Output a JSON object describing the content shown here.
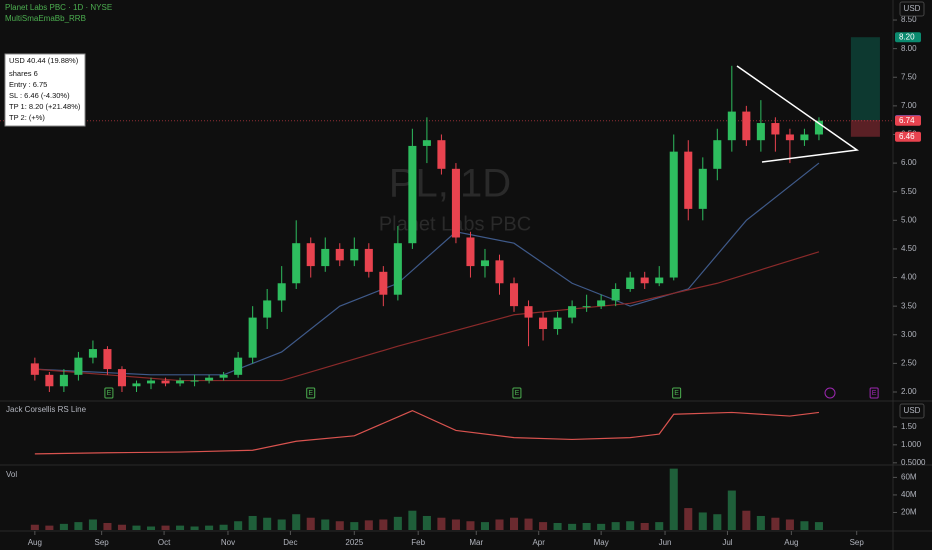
{
  "header": {
    "symbol_line": "Planet Labs PBC · 1D · NYSE",
    "indicator": "MultiSmaEmaBb_RRB",
    "currency": "USD",
    "watermark_symbol": "PL, 1D",
    "watermark_name": "Planet Labs PBC"
  },
  "position_box": {
    "lines": [
      "USD 40.44 (19.88%)",
      "shares 6",
      "Entry : 6.75",
      "SL : 6.46 (-4.30%)",
      "TP 1: 8.20 (+21.48%)",
      "TP 2:  (+%)"
    ]
  },
  "chart_data": [
    {
      "type": "candlestick",
      "up_color": "#2ebd5f",
      "down_color": "#e8434f",
      "x": [
        0,
        1,
        2,
        3,
        4,
        5,
        6,
        7,
        8,
        9,
        10,
        11,
        12,
        13,
        14,
        15,
        16,
        17,
        18,
        19,
        20,
        21,
        22,
        23,
        24,
        25,
        26,
        27,
        28,
        29,
        30,
        31,
        32,
        33,
        34,
        35,
        36,
        37,
        38,
        39,
        40,
        41,
        42,
        43,
        44,
        45,
        46,
        47,
        48,
        49,
        50,
        51,
        52,
        53,
        54
      ],
      "open": [
        2.5,
        2.3,
        2.1,
        2.3,
        2.6,
        2.75,
        2.4,
        2.1,
        2.15,
        2.2,
        2.15,
        2.2,
        2.2,
        2.25,
        2.3,
        2.6,
        3.3,
        3.6,
        3.9,
        4.6,
        4.2,
        4.5,
        4.3,
        4.5,
        4.1,
        3.7,
        4.6,
        6.3,
        6.4,
        5.9,
        4.7,
        4.2,
        4.3,
        3.9,
        3.5,
        3.3,
        3.1,
        3.3,
        3.5,
        3.5,
        3.6,
        3.8,
        4.0,
        3.9,
        4.0,
        6.2,
        5.2,
        5.9,
        6.4,
        6.9,
        6.4,
        6.7,
        6.5,
        6.4,
        6.5
      ],
      "high": [
        2.6,
        2.35,
        2.4,
        2.7,
        2.9,
        2.8,
        2.45,
        2.2,
        2.25,
        2.25,
        2.25,
        2.3,
        2.3,
        2.35,
        2.7,
        3.5,
        3.8,
        4.2,
        5.0,
        4.7,
        4.7,
        4.6,
        4.7,
        4.6,
        4.2,
        4.9,
        6.6,
        6.8,
        6.5,
        6.0,
        4.8,
        4.5,
        4.4,
        4.0,
        3.6,
        3.4,
        3.4,
        3.6,
        3.7,
        3.7,
        3.9,
        4.1,
        4.1,
        4.2,
        6.5,
        6.4,
        6.1,
        6.6,
        7.7,
        7.0,
        7.1,
        6.8,
        6.6,
        6.6,
        6.8
      ],
      "low": [
        2.2,
        2.0,
        2.0,
        2.2,
        2.5,
        2.3,
        2.0,
        2.0,
        2.05,
        2.1,
        2.1,
        2.1,
        2.15,
        2.2,
        2.25,
        2.5,
        3.1,
        3.4,
        3.8,
        4.0,
        4.1,
        4.2,
        4.2,
        4.0,
        3.5,
        3.6,
        4.5,
        6.0,
        5.8,
        4.6,
        4.0,
        4.0,
        3.7,
        3.4,
        2.8,
        2.9,
        3.0,
        3.2,
        3.4,
        3.45,
        3.5,
        3.75,
        3.8,
        3.85,
        3.95,
        5.0,
        5.0,
        5.7,
        6.2,
        6.3,
        6.2,
        6.2,
        6.0,
        6.3,
        6.4
      ],
      "close": [
        2.3,
        2.1,
        2.3,
        2.6,
        2.75,
        2.4,
        2.1,
        2.15,
        2.2,
        2.15,
        2.2,
        2.2,
        2.25,
        2.3,
        2.6,
        3.3,
        3.6,
        3.9,
        4.6,
        4.2,
        4.5,
        4.3,
        4.5,
        4.1,
        3.7,
        4.6,
        6.3,
        6.4,
        5.9,
        4.7,
        4.2,
        4.3,
        3.9,
        3.5,
        3.3,
        3.1,
        3.3,
        3.5,
        3.5,
        3.6,
        3.8,
        4.0,
        3.9,
        4.0,
        6.2,
        5.2,
        5.9,
        6.4,
        6.9,
        6.4,
        6.7,
        6.5,
        6.4,
        6.5,
        6.74
      ],
      "series": [
        {
          "color": "#3f5a8a",
          "x": [
            0,
            8,
            13,
            17,
            21,
            25,
            29,
            33,
            37,
            41,
            45,
            49,
            54
          ],
          "values": [
            2.4,
            2.3,
            2.3,
            2.7,
            3.5,
            3.9,
            4.8,
            4.6,
            3.9,
            3.5,
            3.8,
            5.0,
            6.0
          ]
        },
        {
          "color": "#8a2a2a",
          "x": [
            0,
            10,
            17,
            25,
            33,
            41,
            47,
            54
          ],
          "values": [
            2.4,
            2.2,
            2.2,
            2.8,
            3.35,
            3.55,
            3.9,
            4.45
          ]
        }
      ],
      "price_tags": [
        {
          "value": 8.2,
          "label": "8.20",
          "color": "#0b8a6f"
        },
        {
          "value": 6.75,
          "label": "6.75",
          "color": "#7e57c2"
        },
        {
          "value": 6.74,
          "label": "6.74",
          "color": "#e8434f"
        },
        {
          "value": 6.46,
          "label": "6.46",
          "color": "#e8434f"
        }
      ],
      "events": [
        {
          "x": 5.1,
          "label": "E"
        },
        {
          "x": 19.0,
          "label": "E"
        },
        {
          "x": 33.2,
          "label": "E"
        },
        {
          "x": 44.2,
          "label": "E"
        },
        {
          "x": 57.8,
          "label": "E"
        }
      ],
      "xlim": [
        -2.4,
        59.1
      ],
      "ylim": [
        1.86,
        8.85
      ],
      "yticks": [
        {
          "value": 2.0,
          "label": "2.00"
        },
        {
          "value": 2.5,
          "label": "2.50"
        },
        {
          "value": 3.0,
          "label": "3.00"
        },
        {
          "value": 3.5,
          "label": "3.50"
        },
        {
          "value": 4.0,
          "label": "4.00"
        },
        {
          "value": 4.5,
          "label": "4.50"
        },
        {
          "value": 5.0,
          "label": "5.00"
        },
        {
          "value": 5.5,
          "label": "5.50"
        },
        {
          "value": 6.0,
          "label": "6.00"
        },
        {
          "value": 6.5,
          "label": "6.50"
        },
        {
          "value": 7.0,
          "label": "7.00"
        },
        {
          "value": 7.5,
          "label": "7.50"
        },
        {
          "value": 8.0,
          "label": "8.00"
        },
        {
          "value": 8.5,
          "label": "8.50"
        }
      ]
    },
    {
      "type": "line",
      "title": "Jack Corsellis RS Line",
      "currency": "USD",
      "color": "#d9534f",
      "x": [
        0,
        5,
        10,
        15,
        18,
        22,
        26,
        29,
        33,
        37,
        41,
        43,
        44,
        48,
        52,
        54
      ],
      "values": [
        0.75,
        0.78,
        0.8,
        0.85,
        1.1,
        1.25,
        1.95,
        1.4,
        1.2,
        1.15,
        1.2,
        1.3,
        1.85,
        1.9,
        1.8,
        1.9
      ],
      "xlim": [
        -2.4,
        59.1
      ],
      "ylim": [
        0.44,
        2.19
      ],
      "yticks": [
        {
          "value": 1.5,
          "label": "1.50"
        },
        {
          "value": 1.0,
          "label": "1.000"
        },
        {
          "value": 0.5,
          "label": "0.5000"
        }
      ]
    },
    {
      "type": "bar",
      "title": "Vol",
      "color": "#3a3a3a",
      "x": [
        0,
        1,
        2,
        3,
        4,
        5,
        6,
        7,
        8,
        9,
        10,
        11,
        12,
        13,
        14,
        15,
        16,
        17,
        18,
        19,
        20,
        21,
        22,
        23,
        24,
        25,
        26,
        27,
        28,
        29,
        30,
        31,
        32,
        33,
        34,
        35,
        36,
        37,
        38,
        39,
        40,
        41,
        42,
        43,
        44,
        45,
        46,
        47,
        48,
        49,
        50,
        51,
        52,
        53,
        54
      ],
      "values": [
        6000000,
        5000000,
        7000000,
        9000000,
        12000000,
        8000000,
        6000000,
        5000000,
        4000000,
        5000000,
        5000000,
        4000000,
        5000000,
        6000000,
        10000000,
        16000000,
        14000000,
        12000000,
        18000000,
        14000000,
        12000000,
        10000000,
        9000000,
        11000000,
        12000000,
        15000000,
        22000000,
        16000000,
        14000000,
        12000000,
        10000000,
        9000000,
        12000000,
        14000000,
        13000000,
        9000000,
        8000000,
        7000000,
        8000000,
        7000000,
        9000000,
        10000000,
        8000000,
        9000000,
        70000000,
        25000000,
        20000000,
        18000000,
        45000000,
        22000000,
        16000000,
        14000000,
        12000000,
        10000000,
        9000000
      ],
      "xlim": [
        -2.4,
        59.1
      ],
      "ylim": [
        0,
        73000000
      ],
      "yticks": [
        {
          "value": 60000000,
          "label": "60M"
        },
        {
          "value": 40000000,
          "label": "40M"
        },
        {
          "value": 20000000,
          "label": "20M"
        }
      ],
      "xticks": [
        {
          "value": 0,
          "label": "Aug"
        },
        {
          "value": 4.6,
          "label": "Sep"
        },
        {
          "value": 8.9,
          "label": "Oct"
        },
        {
          "value": 13.3,
          "label": "Nov"
        },
        {
          "value": 17.6,
          "label": "Dec"
        },
        {
          "value": 22,
          "label": "2025"
        },
        {
          "value": 26.4,
          "label": "Feb"
        },
        {
          "value": 30.4,
          "label": "Mar"
        },
        {
          "value": 34.7,
          "label": "Apr"
        },
        {
          "value": 39,
          "label": "May"
        },
        {
          "value": 43.4,
          "label": "Jun"
        },
        {
          "value": 47.7,
          "label": "Jul"
        },
        {
          "value": 52.1,
          "label": "Aug"
        },
        {
          "value": 56.6,
          "label": "Sep"
        }
      ]
    }
  ]
}
